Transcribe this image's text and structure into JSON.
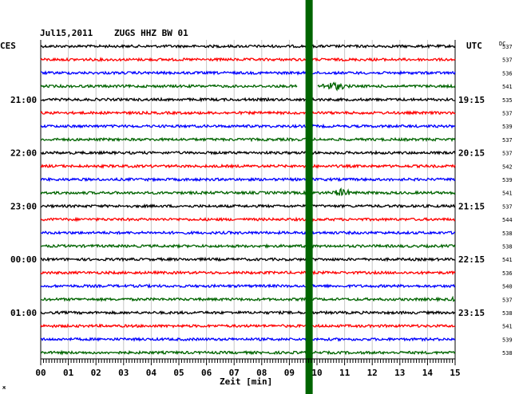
{
  "header": {
    "date": "Jul15,2011",
    "station": "ZUGS HHZ BW 01",
    "left_tz": "CES",
    "right_tz": "UTC",
    "dc_label": "DC"
  },
  "chart_data": {
    "type": "line",
    "title": "Jul15,2011   ZUGS HHZ BW 01",
    "xlabel": "Zeit [min]",
    "xlim": [
      0,
      15
    ],
    "x_ticks": [
      "00",
      "01",
      "02",
      "03",
      "04",
      "05",
      "06",
      "07",
      "08",
      "09",
      "10",
      "11",
      "12",
      "13",
      "14",
      "15"
    ],
    "trace_colors": [
      "#000000",
      "#ff0000",
      "#0000ff",
      "#006400"
    ],
    "rows": 24,
    "left_time_labels": [
      {
        "row": 4,
        "label": "21:00"
      },
      {
        "row": 8,
        "label": "22:00"
      },
      {
        "row": 12,
        "label": "23:00"
      },
      {
        "row": 16,
        "label": "00:00"
      },
      {
        "row": 20,
        "label": "01:00"
      }
    ],
    "right_time_labels": [
      {
        "row": 4,
        "label": "19:15"
      },
      {
        "row": 8,
        "label": "20:15"
      },
      {
        "row": 12,
        "label": "21:15"
      },
      {
        "row": 16,
        "label": "22:15"
      },
      {
        "row": 20,
        "label": "23:15"
      }
    ],
    "dc_values": [
      "537",
      "537",
      "536",
      "541",
      "535",
      "537",
      "539",
      "537",
      "537",
      "542",
      "539",
      "541",
      "537",
      "544",
      "538",
      "538",
      "541",
      "536",
      "540",
      "537",
      "538",
      "541",
      "539",
      "538"
    ],
    "marker": {
      "color": "#006400",
      "x_min": 9.7
    },
    "events": [
      {
        "row": 3,
        "type": "gap",
        "x_from": 9.3,
        "x_to": 10.0
      },
      {
        "row": 3,
        "type": "burst",
        "x_from": 10.0,
        "x_to": 11.2
      },
      {
        "row": 11,
        "type": "burst",
        "x_from": 10.5,
        "x_to": 11.3
      },
      {
        "row": 19,
        "type": "burst",
        "x_from": 14.9,
        "x_to": 15.0
      }
    ]
  },
  "corner_mark": "ж"
}
